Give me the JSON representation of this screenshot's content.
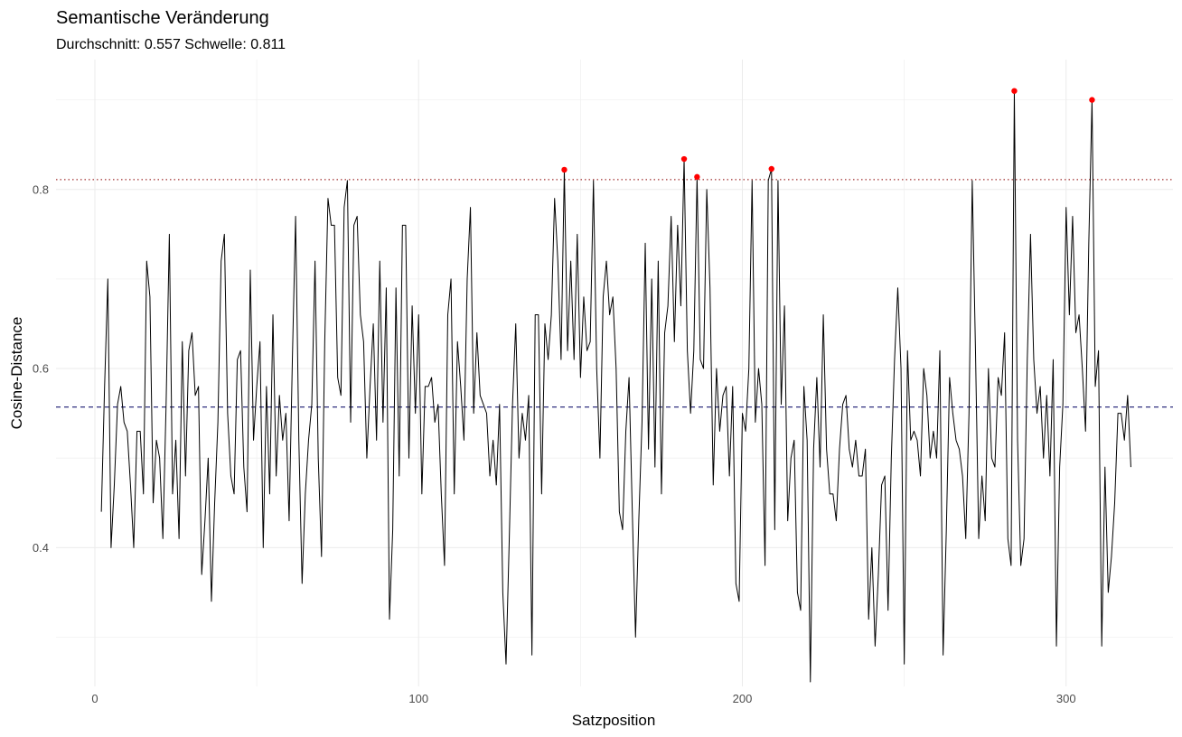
{
  "chart_data": {
    "type": "line",
    "title": "Semantische Veränderung",
    "subtitle": "Durchschnitt: 0.557  Schwelle: 0.811",
    "xlabel": "Satzposition",
    "ylabel": "Cosine-Distance",
    "xlim": [
      -12,
      333
    ],
    "ylim": [
      0.245,
      0.945
    ],
    "x_ticks": [
      0,
      100,
      200,
      300
    ],
    "x_tick_labels": [
      "0",
      "100",
      "200",
      "300"
    ],
    "y_ticks": [
      0.4,
      0.6,
      0.8
    ],
    "y_tick_labels": [
      "0.4",
      "0.6",
      "0.8"
    ],
    "grid": true,
    "mean_line": {
      "value": 0.557,
      "style": "dashed",
      "color": "#191970"
    },
    "threshold_line": {
      "value": 0.811,
      "style": "dotted",
      "color": "#8b0000"
    },
    "series": [
      {
        "color": "#000000",
        "points": [
          [
            2,
            0.44
          ],
          [
            3,
            0.58
          ],
          [
            4,
            0.7
          ],
          [
            5,
            0.4
          ],
          [
            6,
            0.47
          ],
          [
            7,
            0.56
          ],
          [
            8,
            0.58
          ],
          [
            9,
            0.54
          ],
          [
            10,
            0.53
          ],
          [
            11,
            0.47
          ],
          [
            12,
            0.4
          ],
          [
            13,
            0.53
          ],
          [
            14,
            0.53
          ],
          [
            15,
            0.46
          ],
          [
            16,
            0.72
          ],
          [
            17,
            0.68
          ],
          [
            18,
            0.45
          ],
          [
            19,
            0.52
          ],
          [
            20,
            0.5
          ],
          [
            21,
            0.41
          ],
          [
            22,
            0.56
          ],
          [
            23,
            0.75
          ],
          [
            24,
            0.46
          ],
          [
            25,
            0.52
          ],
          [
            26,
            0.41
          ],
          [
            27,
            0.63
          ],
          [
            28,
            0.48
          ],
          [
            29,
            0.62
          ],
          [
            30,
            0.64
          ],
          [
            31,
            0.57
          ],
          [
            32,
            0.58
          ],
          [
            33,
            0.37
          ],
          [
            34,
            0.43
          ],
          [
            35,
            0.5
          ],
          [
            36,
            0.34
          ],
          [
            37,
            0.45
          ],
          [
            38,
            0.54
          ],
          [
            39,
            0.72
          ],
          [
            40,
            0.75
          ],
          [
            41,
            0.55
          ],
          [
            42,
            0.48
          ],
          [
            43,
            0.46
          ],
          [
            44,
            0.61
          ],
          [
            45,
            0.62
          ],
          [
            46,
            0.49
          ],
          [
            47,
            0.44
          ],
          [
            48,
            0.71
          ],
          [
            49,
            0.52
          ],
          [
            50,
            0.58
          ],
          [
            51,
            0.63
          ],
          [
            52,
            0.4
          ],
          [
            53,
            0.58
          ],
          [
            54,
            0.46
          ],
          [
            55,
            0.66
          ],
          [
            56,
            0.48
          ],
          [
            57,
            0.57
          ],
          [
            58,
            0.52
          ],
          [
            59,
            0.55
          ],
          [
            60,
            0.43
          ],
          [
            61,
            0.61
          ],
          [
            62,
            0.77
          ],
          [
            63,
            0.52
          ],
          [
            64,
            0.36
          ],
          [
            65,
            0.46
          ],
          [
            66,
            0.52
          ],
          [
            67,
            0.56
          ],
          [
            68,
            0.72
          ],
          [
            69,
            0.5
          ],
          [
            70,
            0.39
          ],
          [
            71,
            0.63
          ],
          [
            72,
            0.79
          ],
          [
            73,
            0.76
          ],
          [
            74,
            0.76
          ],
          [
            75,
            0.59
          ],
          [
            76,
            0.57
          ],
          [
            77,
            0.78
          ],
          [
            78,
            0.81
          ],
          [
            79,
            0.54
          ],
          [
            80,
            0.76
          ],
          [
            81,
            0.77
          ],
          [
            82,
            0.66
          ],
          [
            83,
            0.63
          ],
          [
            84,
            0.5
          ],
          [
            85,
            0.58
          ],
          [
            86,
            0.65
          ],
          [
            87,
            0.52
          ],
          [
            88,
            0.72
          ],
          [
            89,
            0.54
          ],
          [
            90,
            0.69
          ],
          [
            91,
            0.32
          ],
          [
            92,
            0.42
          ],
          [
            93,
            0.69
          ],
          [
            94,
            0.48
          ],
          [
            95,
            0.76
          ],
          [
            96,
            0.76
          ],
          [
            97,
            0.5
          ],
          [
            98,
            0.67
          ],
          [
            99,
            0.55
          ],
          [
            100,
            0.66
          ],
          [
            101,
            0.46
          ],
          [
            102,
            0.58
          ],
          [
            103,
            0.58
          ],
          [
            104,
            0.59
          ],
          [
            105,
            0.54
          ],
          [
            106,
            0.56
          ],
          [
            107,
            0.46
          ],
          [
            108,
            0.38
          ],
          [
            109,
            0.66
          ],
          [
            110,
            0.7
          ],
          [
            111,
            0.46
          ],
          [
            112,
            0.63
          ],
          [
            113,
            0.58
          ],
          [
            114,
            0.52
          ],
          [
            115,
            0.7
          ],
          [
            116,
            0.78
          ],
          [
            117,
            0.55
          ],
          [
            118,
            0.64
          ],
          [
            119,
            0.57
          ],
          [
            120,
            0.56
          ],
          [
            121,
            0.55
          ],
          [
            122,
            0.48
          ],
          [
            123,
            0.52
          ],
          [
            124,
            0.47
          ],
          [
            125,
            0.56
          ],
          [
            126,
            0.35
          ],
          [
            127,
            0.27
          ],
          [
            128,
            0.41
          ],
          [
            129,
            0.56
          ],
          [
            130,
            0.65
          ],
          [
            131,
            0.5
          ],
          [
            132,
            0.55
          ],
          [
            133,
            0.52
          ],
          [
            134,
            0.57
          ],
          [
            135,
            0.28
          ],
          [
            136,
            0.66
          ],
          [
            137,
            0.66
          ],
          [
            138,
            0.46
          ],
          [
            139,
            0.65
          ],
          [
            140,
            0.61
          ],
          [
            141,
            0.66
          ],
          [
            142,
            0.79
          ],
          [
            143,
            0.72
          ],
          [
            144,
            0.61
          ],
          [
            145,
            0.822
          ],
          [
            146,
            0.62
          ],
          [
            147,
            0.72
          ],
          [
            148,
            0.61
          ],
          [
            149,
            0.75
          ],
          [
            150,
            0.59
          ],
          [
            151,
            0.68
          ],
          [
            152,
            0.62
          ],
          [
            153,
            0.63
          ],
          [
            154,
            0.81
          ],
          [
            155,
            0.6
          ],
          [
            156,
            0.5
          ],
          [
            157,
            0.68
          ],
          [
            158,
            0.72
          ],
          [
            159,
            0.66
          ],
          [
            160,
            0.68
          ],
          [
            161,
            0.6
          ],
          [
            162,
            0.44
          ],
          [
            163,
            0.42
          ],
          [
            164,
            0.53
          ],
          [
            165,
            0.59
          ],
          [
            166,
            0.44
          ],
          [
            167,
            0.3
          ],
          [
            168,
            0.43
          ],
          [
            169,
            0.54
          ],
          [
            170,
            0.74
          ],
          [
            171,
            0.51
          ],
          [
            172,
            0.7
          ],
          [
            173,
            0.49
          ],
          [
            174,
            0.72
          ],
          [
            175,
            0.46
          ],
          [
            176,
            0.64
          ],
          [
            177,
            0.67
          ],
          [
            178,
            0.77
          ],
          [
            179,
            0.63
          ],
          [
            180,
            0.76
          ],
          [
            181,
            0.67
          ],
          [
            182,
            0.834
          ],
          [
            183,
            0.62
          ],
          [
            184,
            0.55
          ],
          [
            185,
            0.62
          ],
          [
            186,
            0.814
          ],
          [
            187,
            0.61
          ],
          [
            188,
            0.6
          ],
          [
            189,
            0.8
          ],
          [
            190,
            0.69
          ],
          [
            191,
            0.47
          ],
          [
            192,
            0.6
          ],
          [
            193,
            0.53
          ],
          [
            194,
            0.57
          ],
          [
            195,
            0.58
          ],
          [
            196,
            0.48
          ],
          [
            197,
            0.58
          ],
          [
            198,
            0.36
          ],
          [
            199,
            0.34
          ],
          [
            200,
            0.55
          ],
          [
            201,
            0.53
          ],
          [
            202,
            0.6
          ],
          [
            203,
            0.81
          ],
          [
            204,
            0.54
          ],
          [
            205,
            0.6
          ],
          [
            206,
            0.56
          ],
          [
            207,
            0.38
          ],
          [
            208,
            0.81
          ],
          [
            209,
            0.823
          ],
          [
            210,
            0.42
          ],
          [
            211,
            0.81
          ],
          [
            212,
            0.56
          ],
          [
            213,
            0.67
          ],
          [
            214,
            0.43
          ],
          [
            215,
            0.5
          ],
          [
            216,
            0.52
          ],
          [
            217,
            0.35
          ],
          [
            218,
            0.33
          ],
          [
            219,
            0.58
          ],
          [
            220,
            0.52
          ],
          [
            221,
            0.25
          ],
          [
            222,
            0.51
          ],
          [
            223,
            0.59
          ],
          [
            224,
            0.49
          ],
          [
            225,
            0.66
          ],
          [
            226,
            0.51
          ],
          [
            227,
            0.46
          ],
          [
            228,
            0.46
          ],
          [
            229,
            0.43
          ],
          [
            230,
            0.51
          ],
          [
            231,
            0.56
          ],
          [
            232,
            0.57
          ],
          [
            233,
            0.51
          ],
          [
            234,
            0.49
          ],
          [
            235,
            0.52
          ],
          [
            236,
            0.48
          ],
          [
            237,
            0.48
          ],
          [
            238,
            0.51
          ],
          [
            239,
            0.32
          ],
          [
            240,
            0.4
          ],
          [
            241,
            0.29
          ],
          [
            242,
            0.37
          ],
          [
            243,
            0.47
          ],
          [
            244,
            0.48
          ],
          [
            245,
            0.33
          ],
          [
            246,
            0.5
          ],
          [
            247,
            0.61
          ],
          [
            248,
            0.69
          ],
          [
            249,
            0.6
          ],
          [
            250,
            0.27
          ],
          [
            251,
            0.62
          ],
          [
            252,
            0.52
          ],
          [
            253,
            0.53
          ],
          [
            254,
            0.52
          ],
          [
            255,
            0.48
          ],
          [
            256,
            0.6
          ],
          [
            257,
            0.57
          ],
          [
            258,
            0.5
          ],
          [
            259,
            0.53
          ],
          [
            260,
            0.5
          ],
          [
            261,
            0.62
          ],
          [
            262,
            0.28
          ],
          [
            263,
            0.42
          ],
          [
            264,
            0.59
          ],
          [
            265,
            0.55
          ],
          [
            266,
            0.52
          ],
          [
            267,
            0.51
          ],
          [
            268,
            0.48
          ],
          [
            269,
            0.41
          ],
          [
            270,
            0.55
          ],
          [
            271,
            0.81
          ],
          [
            272,
            0.62
          ],
          [
            273,
            0.41
          ],
          [
            274,
            0.48
          ],
          [
            275,
            0.43
          ],
          [
            276,
            0.6
          ],
          [
            277,
            0.5
          ],
          [
            278,
            0.49
          ],
          [
            279,
            0.59
          ],
          [
            280,
            0.57
          ],
          [
            281,
            0.64
          ],
          [
            282,
            0.41
          ],
          [
            283,
            0.38
          ],
          [
            284,
            0.91
          ],
          [
            285,
            0.52
          ],
          [
            286,
            0.38
          ],
          [
            287,
            0.41
          ],
          [
            288,
            0.61
          ],
          [
            289,
            0.75
          ],
          [
            290,
            0.61
          ],
          [
            291,
            0.55
          ],
          [
            292,
            0.58
          ],
          [
            293,
            0.5
          ],
          [
            294,
            0.57
          ],
          [
            295,
            0.48
          ],
          [
            296,
            0.61
          ],
          [
            297,
            0.29
          ],
          [
            298,
            0.49
          ],
          [
            299,
            0.56
          ],
          [
            300,
            0.78
          ],
          [
            301,
            0.66
          ],
          [
            302,
            0.77
          ],
          [
            303,
            0.64
          ],
          [
            304,
            0.66
          ],
          [
            305,
            0.6
          ],
          [
            306,
            0.53
          ],
          [
            307,
            0.74
          ],
          [
            308,
            0.9
          ],
          [
            309,
            0.58
          ],
          [
            310,
            0.62
          ],
          [
            311,
            0.29
          ],
          [
            312,
            0.49
          ],
          [
            313,
            0.35
          ],
          [
            314,
            0.39
          ],
          [
            315,
            0.45
          ],
          [
            316,
            0.55
          ],
          [
            317,
            0.55
          ],
          [
            318,
            0.52
          ],
          [
            319,
            0.57
          ],
          [
            320,
            0.49
          ]
        ]
      }
    ],
    "peaks": {
      "color": "#ff0000",
      "points": [
        [
          145,
          0.822
        ],
        [
          182,
          0.834
        ],
        [
          186,
          0.814
        ],
        [
          209,
          0.823
        ],
        [
          284,
          0.91
        ],
        [
          308,
          0.9
        ]
      ]
    }
  }
}
